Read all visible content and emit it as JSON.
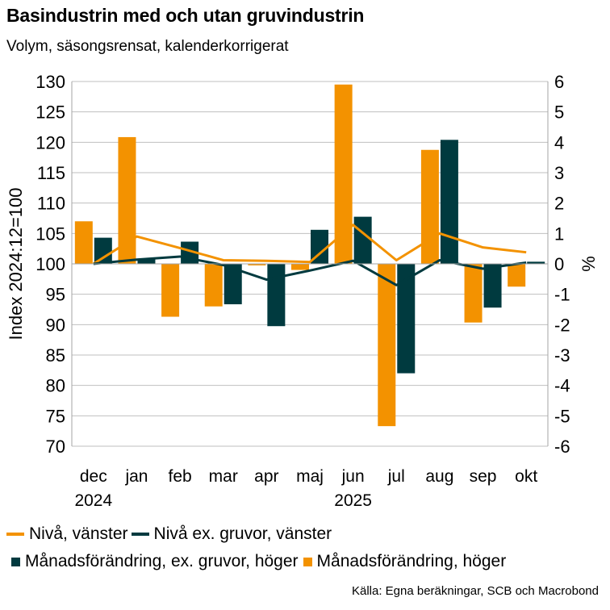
{
  "title": "Basindustrin med och utan gruvindustrin",
  "subtitle": "Volym, säsongsrensat, kalenderkorrigerat",
  "source": "Källa: Egna beräkningar, SCB och Macrobond",
  "colors": {
    "orange": "#F39200",
    "dark": "#003A3F",
    "grid": "#bfbfbf",
    "axis": "#a6a6a6"
  },
  "chart_data": {
    "type": "bar+line",
    "categories": [
      "dec",
      "jan",
      "feb",
      "mar",
      "apr",
      "maj",
      "jun",
      "jul",
      "aug",
      "sep",
      "okt"
    ],
    "year_labels": [
      {
        "index": 0,
        "label": "2024"
      },
      {
        "index": 6,
        "label": "2025"
      }
    ],
    "left_axis": {
      "label": "Index 2024:12=100",
      "range": [
        70,
        130
      ],
      "ticks": [
        70,
        75,
        80,
        85,
        90,
        95,
        100,
        105,
        110,
        115,
        120,
        125,
        130
      ]
    },
    "right_axis": {
      "label": "%",
      "range": [
        -6,
        6
      ],
      "ticks": [
        -6,
        -5,
        -4,
        -3,
        -2,
        -1,
        0,
        1,
        2,
        3,
        4,
        5,
        6
      ]
    },
    "series": [
      {
        "name": "Nivå, vänster",
        "type": "line",
        "axis": "left",
        "color": "#F39200",
        "values": [
          100,
          104.5,
          102.6,
          100.6,
          100.5,
          100.3,
          106.4,
          100.6,
          105.0,
          102.7,
          101.9
        ]
      },
      {
        "name": "Nivå ex. gruvor, vänster",
        "type": "line",
        "axis": "left",
        "color": "#003A3F",
        "values": [
          100,
          100.7,
          101.2,
          99.8,
          97.4,
          98.9,
          100.5,
          96.5,
          100.6,
          99.2,
          100.2
        ]
      },
      {
        "name": "Månadsförändring, ex. gruvor, höger",
        "type": "bar",
        "axis": "right",
        "color": "#003A3F",
        "values": [
          0.86,
          0.16,
          0.73,
          -1.33,
          -2.05,
          1.12,
          1.55,
          -3.6,
          4.08,
          -1.44,
          0.07
        ]
      },
      {
        "name": "Månadsförändring, höger",
        "type": "bar",
        "axis": "right",
        "color": "#F39200",
        "values": [
          1.4,
          4.17,
          -1.74,
          -1.4,
          -0.05,
          -0.2,
          5.9,
          -5.34,
          3.75,
          -1.93,
          -0.75
        ]
      }
    ]
  }
}
